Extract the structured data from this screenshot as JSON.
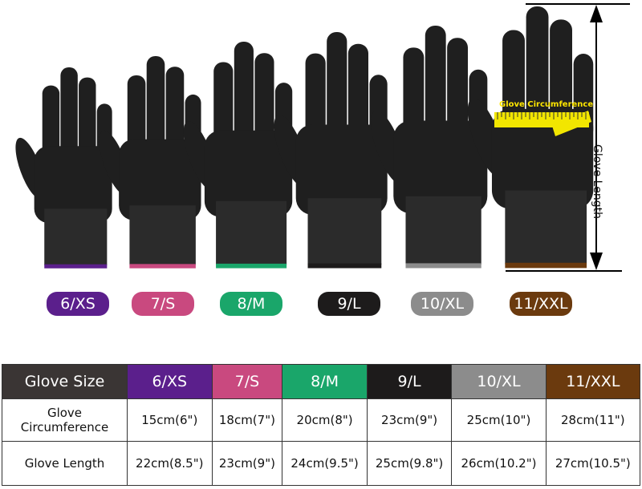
{
  "sizes": [
    {
      "label": "6/XS",
      "color": "#5b1f8c",
      "circumference": "15cm(6\")",
      "length": "22cm(8.5\")"
    },
    {
      "label": "7/S",
      "color": "#c9497f",
      "circumference": "18cm(7\")",
      "length": "23cm(9\")"
    },
    {
      "label": "8/M",
      "color": "#1aa66a",
      "circumference": "20cm(8\")",
      "length": "24cm(9.5\")"
    },
    {
      "label": "9/L",
      "color": "#1d1b1b",
      "circumference": "23cm(9\")",
      "length": "25cm(9.8\")"
    },
    {
      "label": "10/XL",
      "color": "#8c8c8c",
      "circumference": "25cm(10\")",
      "length": "26cm(10.2\")"
    },
    {
      "label": "11/XXL",
      "color": "#6b3a0e",
      "circumference": "28cm(11\")",
      "length": "27cm(10.5\")"
    }
  ],
  "annotations": {
    "circumference": "Glove Circumference",
    "length": "Glove Length"
  },
  "table": {
    "header_label": "Glove Size",
    "row1_label": "Glove Circumference",
    "row2_label": "Glove Length",
    "header_bg": "#3a3534"
  }
}
